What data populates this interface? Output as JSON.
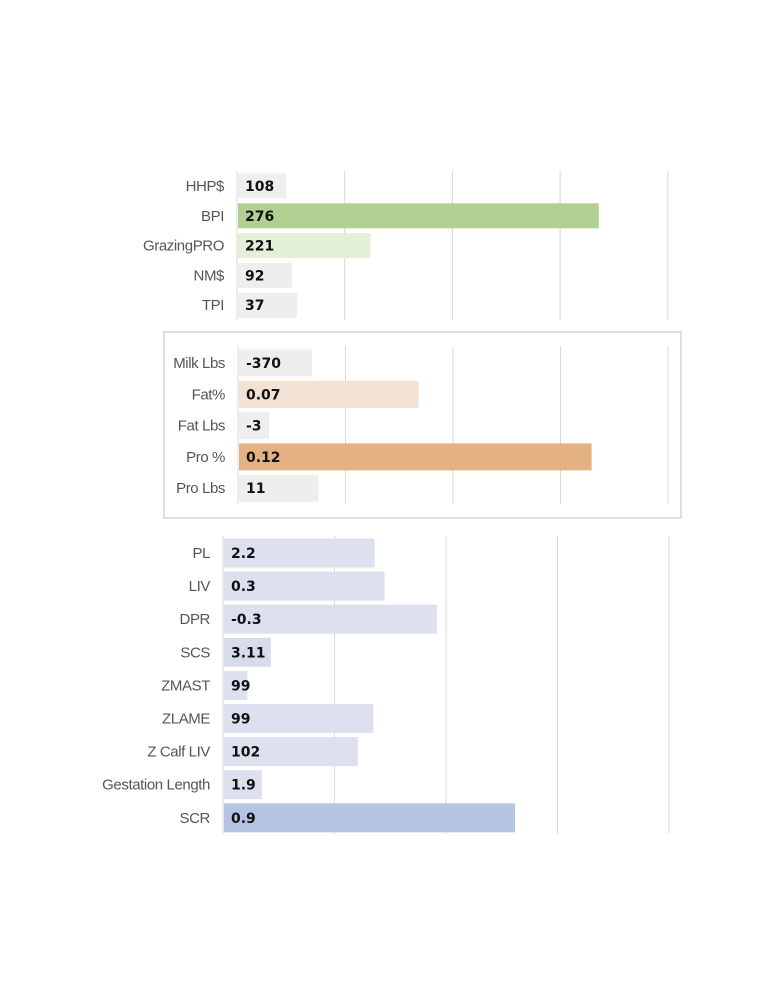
{
  "chart_data": [
    {
      "type": "bar",
      "orientation": "horizontal",
      "categories": [
        "HHP$",
        "BPI",
        "GrazingPRO",
        "NM$",
        "TPI"
      ],
      "value_labels": [
        "108",
        "276",
        "221",
        "92",
        "37"
      ],
      "values": [
        0.45,
        3.35,
        1.23,
        0.5,
        0.55
      ],
      "highlight_colors": [
        "#eeeeee",
        "#b2d092",
        "#e3efd9",
        "#eeeeee",
        "#eeeeee"
      ],
      "xlim": [
        0,
        4
      ],
      "grid": true,
      "framed": false
    },
    {
      "type": "bar",
      "orientation": "horizontal",
      "categories": [
        "Milk Lbs",
        "Fat%",
        "Fat Lbs",
        "Pro %",
        "Pro Lbs"
      ],
      "value_labels": [
        "-370",
        "0.07",
        "-3",
        "0.12",
        "11"
      ],
      "values": [
        0.68,
        1.67,
        0.28,
        3.28,
        0.74
      ],
      "highlight_colors": [
        "#eeeeee",
        "#f2e2d4",
        "#eeeeee",
        "#e4b183",
        "#eeeeee"
      ],
      "xlim": [
        0,
        4
      ],
      "grid": true,
      "framed": true
    },
    {
      "type": "bar",
      "orientation": "horizontal",
      "categories": [
        "PL",
        "LIV",
        "DPR",
        "SCS",
        "ZMAST",
        "ZLAME",
        "Z Calf LIV",
        "Gestation Length",
        "SCR"
      ],
      "value_labels": [
        "2.2",
        "0.3",
        "-0.3",
        "3.11",
        "99",
        "99",
        "102",
        "1.9",
        "0.9"
      ],
      "values": [
        1.35,
        1.44,
        1.91,
        0.42,
        0.21,
        1.34,
        1.2,
        0.34,
        2.61
      ],
      "highlight_colors": [
        "#dde1ef",
        "#dde1ef",
        "#dde1ef",
        "#d7dcec",
        "#dde1ef",
        "#dde1ef",
        "#dde1ef",
        "#dde1ef",
        "#b6c4e3"
      ],
      "xlim": [
        0,
        4
      ],
      "grid": true,
      "framed": false
    }
  ]
}
